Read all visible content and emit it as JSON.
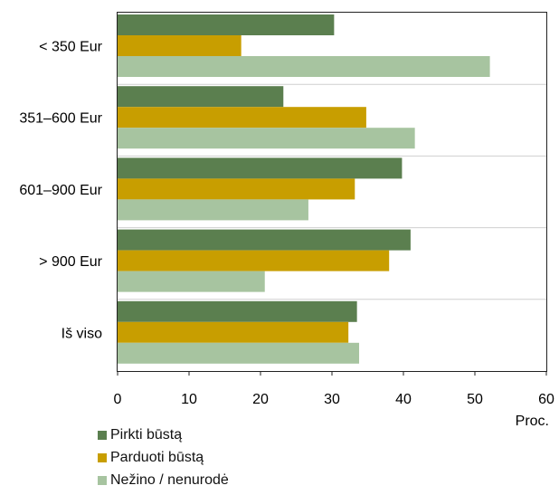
{
  "chart_data": {
    "type": "bar",
    "orientation": "horizontal",
    "categories": [
      "< 350 Eur",
      "351–600 Eur",
      "601–900 Eur",
      "> 900 Eur",
      "Iš viso"
    ],
    "series": [
      {
        "name": "Pirkti būstą",
        "values": [
          30.3,
          23.2,
          39.8,
          41.0,
          33.5
        ],
        "color": "#5b7f4f"
      },
      {
        "name": "Parduoti būstą",
        "values": [
          17.3,
          34.8,
          33.2,
          38.0,
          32.3
        ],
        "color": "#c89e00"
      },
      {
        "name": "Nežino / nenurodė",
        "values": [
          52.1,
          41.6,
          26.7,
          20.6,
          33.8
        ],
        "color": "#a7c4a0"
      }
    ],
    "xlim": [
      0,
      60
    ],
    "xticks": [
      "0",
      "10",
      "20",
      "30",
      "40",
      "50",
      "60"
    ],
    "xlabel": "Proc.",
    "grid": "horizontal separators between categories",
    "legend": "bottom"
  }
}
